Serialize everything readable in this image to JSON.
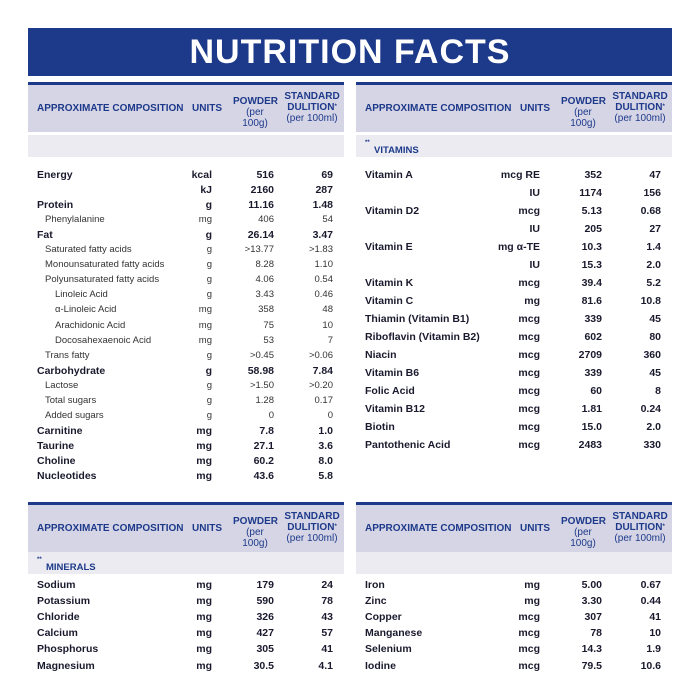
{
  "title": "NUTRITION FACTS",
  "header_cols": {
    "comp": "APPROXIMATE COMPOSITION",
    "units": "UNITS",
    "powder": "POWDER",
    "powder_sub": "(per 100g)",
    "std_line1": "STANDARD",
    "std_line2": "DULITION",
    "std_mark": "*",
    "std_sub": "(per 100ml)"
  },
  "vitamins_label": "VITAMINS",
  "minerals_label": "MINERALS",
  "section_mark": "**",
  "macros": [
    {
      "name": "Energy",
      "unit": "kcal",
      "powder": "516",
      "std": "69",
      "style": "b"
    },
    {
      "name": "",
      "unit": "kJ",
      "powder": "2160",
      "std": "287",
      "style": "b"
    },
    {
      "name": "Protein",
      "unit": "g",
      "powder": "11.16",
      "std": "1.48",
      "style": "b"
    },
    {
      "name": "Phenylalanine",
      "unit": "mg",
      "powder": "406",
      "std": "54",
      "style": "l"
    },
    {
      "name": "Fat",
      "unit": "g",
      "powder": "26.14",
      "std": "3.47",
      "style": "b"
    },
    {
      "name": "Saturated fatty acids",
      "unit": "g",
      "powder": ">13.77",
      "std": ">1.83",
      "style": "l"
    },
    {
      "name": "Monounsaturated fatty acids",
      "unit": "g",
      "powder": "8.28",
      "std": "1.10",
      "style": "l"
    },
    {
      "name": "Polyunsaturated fatty acids",
      "unit": "g",
      "powder": "4.06",
      "std": "0.54",
      "style": "l"
    },
    {
      "name": "Linoleic Acid",
      "unit": "g",
      "powder": "3.43",
      "std": "0.46",
      "style": "l2"
    },
    {
      "name": "α-Linoleic Acid",
      "unit": "mg",
      "powder": "358",
      "std": "48",
      "style": "l2"
    },
    {
      "name": "Arachidonic Acid",
      "unit": "mg",
      "powder": "75",
      "std": "10",
      "style": "l2"
    },
    {
      "name": "Docosahexaenoic Acid",
      "unit": "mg",
      "powder": "53",
      "std": "7",
      "style": "l2"
    },
    {
      "name": "Trans fatty",
      "unit": "g",
      "powder": ">0.45",
      "std": ">0.06",
      "style": "l"
    },
    {
      "name": "Carbohydrate",
      "unit": "g",
      "powder": "58.98",
      "std": "7.84",
      "style": "b"
    },
    {
      "name": "Lactose",
      "unit": "g",
      "powder": ">1.50",
      "std": ">0.20",
      "style": "l"
    },
    {
      "name": "Total sugars",
      "unit": "g",
      "powder": "1.28",
      "std": "0.17",
      "style": "l"
    },
    {
      "name": "Added sugars",
      "unit": "g",
      "powder": "0",
      "std": "0",
      "style": "l"
    },
    {
      "name": "Carnitine",
      "unit": "mg",
      "powder": "7.8",
      "std": "1.0",
      "style": "b"
    },
    {
      "name": "Taurine",
      "unit": "mg",
      "powder": "27.1",
      "std": "3.6",
      "style": "b"
    },
    {
      "name": "Choline",
      "unit": "mg",
      "powder": "60.2",
      "std": "8.0",
      "style": "b"
    },
    {
      "name": "Nucleotides",
      "unit": "mg",
      "powder": "43.6",
      "std": "5.8",
      "style": "b"
    }
  ],
  "vitamins": [
    {
      "name": "Vitamin A",
      "unit": "mcg RE",
      "powder": "352",
      "std": "47"
    },
    {
      "name": "",
      "unit": "IU",
      "powder": "1174",
      "std": "156"
    },
    {
      "name": "Vitamin D2",
      "unit": "mcg",
      "powder": "5.13",
      "std": "0.68"
    },
    {
      "name": "",
      "unit": "IU",
      "powder": "205",
      "std": "27"
    },
    {
      "name": "Vitamin E",
      "unit": "mg α-TE",
      "powder": "10.3",
      "std": "1.4"
    },
    {
      "name": "",
      "unit": "IU",
      "powder": "15.3",
      "std": "2.0"
    },
    {
      "name": "Vitamin K",
      "unit": "mcg",
      "powder": "39.4",
      "std": "5.2"
    },
    {
      "name": "Vitamin C",
      "unit": "mg",
      "powder": "81.6",
      "std": "10.8"
    },
    {
      "name": "Thiamin (Vitamin B1)",
      "unit": "mcg",
      "powder": "339",
      "std": "45"
    },
    {
      "name": "Riboflavin (Vitamin B2)",
      "unit": "mcg",
      "powder": "602",
      "std": "80"
    },
    {
      "name": "Niacin",
      "unit": "mcg",
      "powder": "2709",
      "std": "360"
    },
    {
      "name": "Vitamin B6",
      "unit": "mcg",
      "powder": "339",
      "std": "45"
    },
    {
      "name": "Folic Acid",
      "unit": "mcg",
      "powder": "60",
      "std": "8"
    },
    {
      "name": "Vitamin B12",
      "unit": "mcg",
      "powder": "1.81",
      "std": "0.24"
    },
    {
      "name": "Biotin",
      "unit": "mcg",
      "powder": "15.0",
      "std": "2.0"
    },
    {
      "name": "Pantothenic Acid",
      "unit": "mcg",
      "powder": "2483",
      "std": "330"
    }
  ],
  "minerals_left": [
    {
      "name": "Sodium",
      "unit": "mg",
      "powder": "179",
      "std": "24"
    },
    {
      "name": "Potassium",
      "unit": "mg",
      "powder": "590",
      "std": "78"
    },
    {
      "name": "Chloride",
      "unit": "mg",
      "powder": "326",
      "std": "43"
    },
    {
      "name": "Calcium",
      "unit": "mg",
      "powder": "427",
      "std": "57"
    },
    {
      "name": "Phosphorus",
      "unit": "mg",
      "powder": "305",
      "std": "41"
    },
    {
      "name": "Magnesium",
      "unit": "mg",
      "powder": "30.5",
      "std": "4.1"
    }
  ],
  "minerals_right": [
    {
      "name": "Iron",
      "unit": "mg",
      "powder": "5.00",
      "std": "0.67"
    },
    {
      "name": "Zinc",
      "unit": "mg",
      "powder": "3.30",
      "std": "0.44"
    },
    {
      "name": "Copper",
      "unit": "mcg",
      "powder": "307",
      "std": "41"
    },
    {
      "name": "Manganese",
      "unit": "mcg",
      "powder": "78",
      "std": "10"
    },
    {
      "name": "Selenium",
      "unit": "mcg",
      "powder": "14.3",
      "std": "1.9"
    },
    {
      "name": "Iodine",
      "unit": "mcg",
      "powder": "79.5",
      "std": "10.6"
    }
  ]
}
